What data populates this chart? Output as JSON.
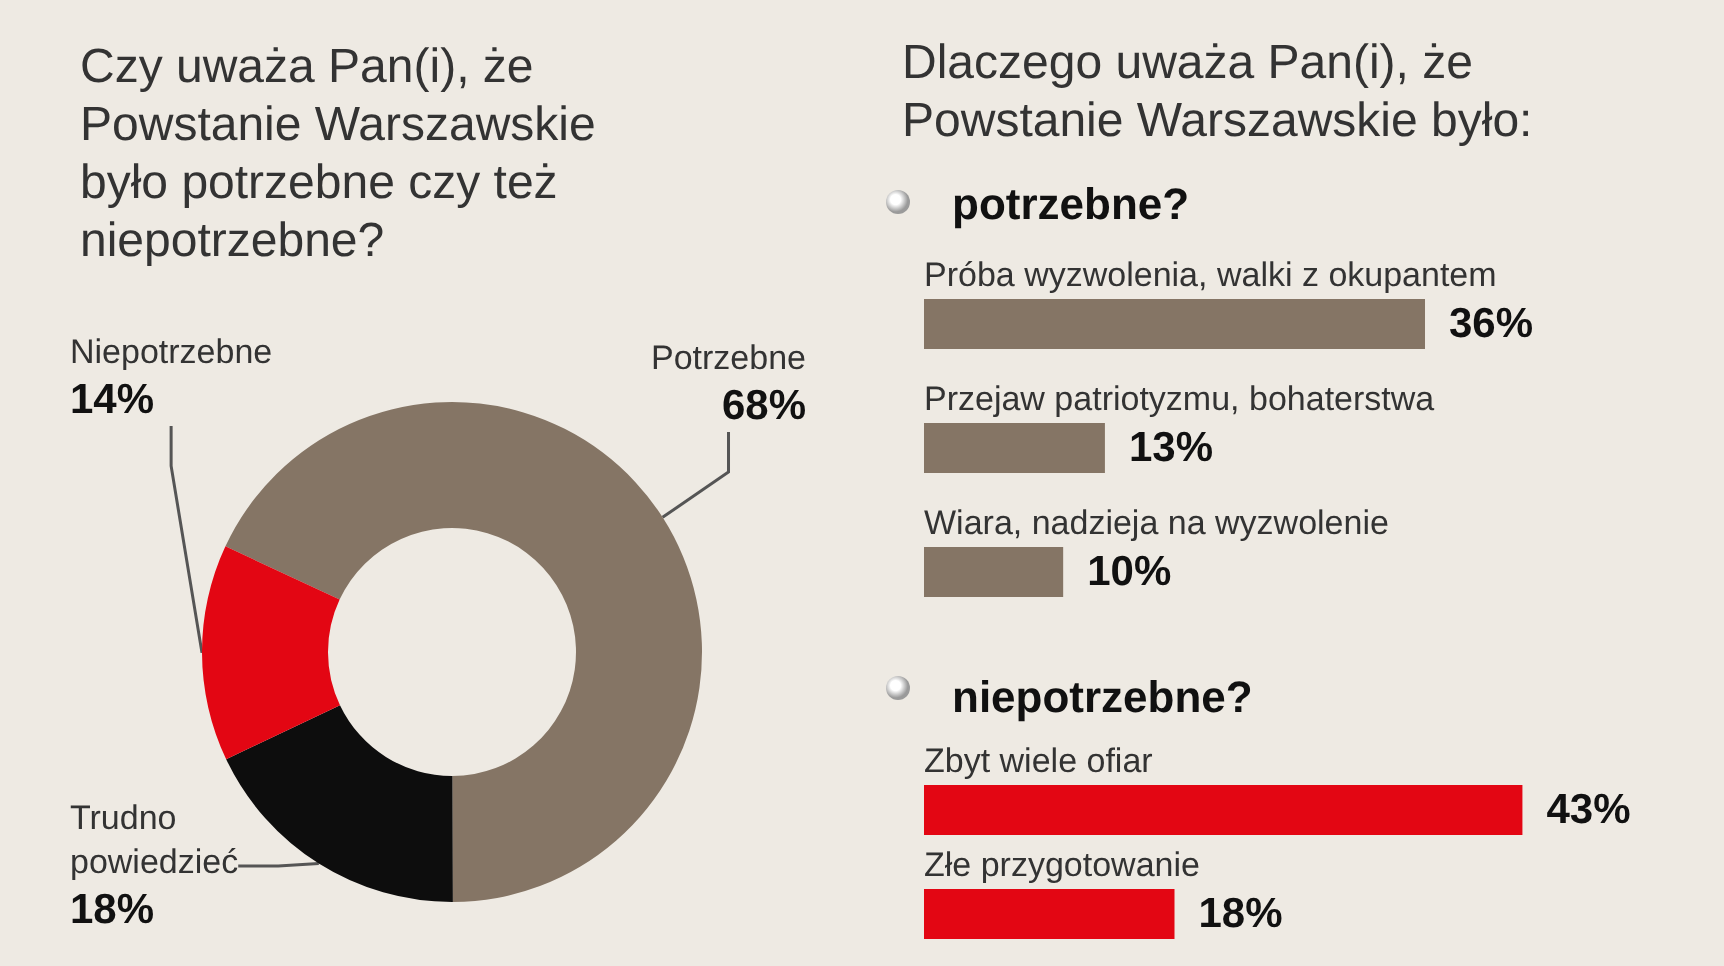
{
  "chart_data": [
    {
      "type": "donut",
      "title": "Czy uważa Pan(i), że Powstanie Warszawskie było potrzebne czy też niepotrzebne?",
      "categories": [
        "Potrzebne",
        "Trudno powiedzieć",
        "Niepotrzebne"
      ],
      "values": [
        68,
        18,
        14
      ],
      "value_labels": [
        "68%",
        "18%",
        "14%"
      ],
      "colors": [
        "#857565",
        "#0d0d0d",
        "#e30613"
      ]
    },
    {
      "type": "bar",
      "orientation": "horizontal",
      "title": "Dlaczego uważa Pan(i), że Powstanie Warszawskie było:",
      "subtitle": "potrzebne?",
      "categories": [
        "Próba wyzwolenia, walki z okupantem",
        "Przejaw patriotyzmu, bohaterstwa",
        "Wiara, nadzieja na wyzwolenie"
      ],
      "values": [
        36,
        13,
        10
      ],
      "value_labels": [
        "36%",
        "13%",
        "10%"
      ],
      "color": "#857565"
    },
    {
      "type": "bar",
      "orientation": "horizontal",
      "title": "niepotrzebne?",
      "categories": [
        "Zbyt wiele ofiar",
        "Złe przygotowanie"
      ],
      "values": [
        43,
        18
      ],
      "value_labels": [
        "43%",
        "18%"
      ],
      "color": "#e30613"
    }
  ]
}
